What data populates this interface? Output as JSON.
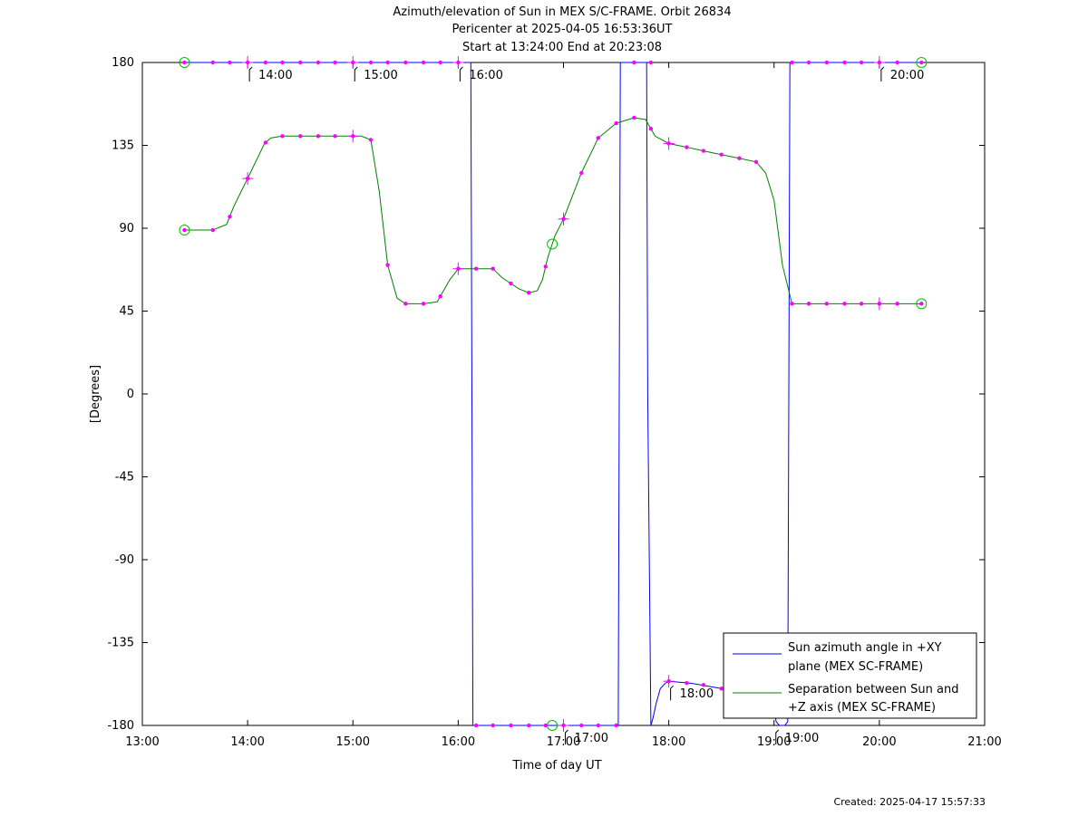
{
  "chart_data": {
    "type": "line",
    "title_lines": [
      "Azimuth/elevation of Sun in MEX S/C-FRAME.  Orbit 26834",
      "Pericenter at 2025-04-05 16:53:36UT",
      "Start at 13:24:00 End at 20:23:08"
    ],
    "xlabel": "Time of day UT",
    "ylabel": "[Degrees]",
    "xlim": [
      13.0,
      21.0
    ],
    "ylim": [
      -180,
      180
    ],
    "x_ticks": [
      13,
      14,
      15,
      16,
      17,
      18,
      19,
      20,
      21
    ],
    "x_tick_labels": [
      "13:00",
      "14:00",
      "15:00",
      "16:00",
      "17:00",
      "18:00",
      "19:00",
      "20:00",
      "21:00"
    ],
    "y_ticks": [
      180,
      135,
      90,
      45,
      0,
      -45,
      -90,
      -135,
      -180
    ],
    "y_tick_labels": [
      "180",
      "135",
      "90",
      "45",
      "0",
      "-45",
      "-90",
      "-135",
      "-180"
    ],
    "grid": false,
    "legend_position": "bottom-right",
    "series": [
      {
        "name": "Sun azimuth angle in +XY plane (MEX SC-FRAME)",
        "color": "#0000ff",
        "x": [
          13.4,
          13.9,
          14.0,
          15.0,
          16.0,
          16.12,
          16.13,
          16.14,
          16.5,
          17.0,
          17.5,
          17.52,
          17.53,
          17.54,
          17.78,
          17.79,
          17.8,
          17.83,
          17.85,
          17.88,
          17.92,
          17.97,
          18.0,
          18.2,
          18.5,
          18.9,
          19.0,
          19.02,
          19.05,
          19.1,
          19.13,
          19.14,
          19.15,
          19.5,
          20.0,
          20.4
        ],
        "y": [
          180,
          180,
          180,
          180,
          180,
          180,
          0,
          -180,
          -180,
          -180,
          -180,
          -180,
          0,
          180,
          180,
          180,
          0,
          -180,
          -176,
          -168,
          -160,
          -157,
          -156,
          -157,
          -160,
          -165,
          -172,
          -178,
          -180,
          -180,
          -178,
          0,
          180,
          180,
          180,
          180
        ]
      },
      {
        "name": "Separation between Sun and +Z axis (MEX SC-FRAME)",
        "color": "#008000",
        "x": [
          13.4,
          13.67,
          13.8,
          13.87,
          14.0,
          14.16,
          14.22,
          14.33,
          14.5,
          14.67,
          14.83,
          15.0,
          15.08,
          15.17,
          15.25,
          15.33,
          15.42,
          15.5,
          15.67,
          15.8,
          15.92,
          16.0,
          16.33,
          16.42,
          16.5,
          16.58,
          16.67,
          16.75,
          16.8,
          16.85,
          16.92,
          17.0,
          17.17,
          17.33,
          17.5,
          17.67,
          17.78,
          17.87,
          18.0,
          18.17,
          18.33,
          18.5,
          18.67,
          18.83,
          18.92,
          19.0,
          19.08,
          19.17,
          19.33,
          19.5,
          19.67,
          19.83,
          20.0,
          20.17,
          20.4
        ],
        "y": [
          89,
          89,
          92,
          102,
          117,
          136,
          139,
          140,
          140,
          140,
          140,
          140,
          140,
          138,
          110,
          70,
          52,
          49,
          49,
          50,
          62,
          68,
          68,
          63,
          60,
          57,
          55,
          56,
          62,
          74,
          86,
          95,
          120,
          139,
          147,
          150,
          149,
          140,
          136,
          134,
          132,
          130,
          128,
          126,
          120,
          105,
          70,
          49,
          49,
          49,
          49,
          49,
          49,
          49,
          49
        ]
      }
    ],
    "markers": {
      "azimuth_points_x": [
        13.4,
        13.67,
        13.83,
        14.0,
        14.17,
        14.33,
        14.5,
        14.67,
        14.83,
        15.0,
        15.17,
        15.33,
        15.5,
        15.67,
        15.83,
        16.0,
        16.17,
        16.33,
        16.5,
        16.67,
        16.83,
        17.0,
        17.17,
        17.33,
        17.5,
        17.67,
        17.83,
        18.0,
        18.17,
        18.33,
        18.5,
        18.67,
        18.83,
        19.17,
        19.33,
        19.5,
        19.67,
        19.83,
        20.0,
        20.17,
        20.4
      ],
      "azimuth_points_y": [
        180,
        180,
        180,
        180,
        180,
        180,
        180,
        180,
        180,
        180,
        180,
        180,
        180,
        180,
        180,
        180,
        -180,
        -180,
        -180,
        -180,
        -180,
        -180,
        -180,
        -180,
        -180,
        180,
        180,
        -156,
        -157,
        -158,
        -160,
        -162,
        -164,
        180,
        180,
        180,
        180,
        180,
        180,
        180,
        180
      ],
      "start_x": 13.4,
      "end_x": 20.4,
      "pericenter_x": 16.893
    },
    "hour_markers": [
      {
        "x": 14.0,
        "series": "azimuth",
        "label": "14:00"
      },
      {
        "x": 15.0,
        "series": "azimuth",
        "label": "15:00"
      },
      {
        "x": 16.0,
        "series": "azimuth",
        "label": "16:00"
      },
      {
        "x": 17.0,
        "series": "azimuth",
        "label": "17:00"
      },
      {
        "x": 18.0,
        "series": "azimuth",
        "label": "18:00"
      },
      {
        "x": 19.0,
        "series": "azimuth",
        "label": "19:00"
      },
      {
        "x": 20.0,
        "series": "azimuth",
        "label": "20:00"
      }
    ],
    "legend": [
      {
        "line1": "Sun azimuth angle in +XY",
        "line2": "plane (MEX SC-FRAME)",
        "color": "#0000ff"
      },
      {
        "line1": "Separation between Sun and",
        "line2": "+Z axis (MEX SC-FRAME)",
        "color": "#008000"
      }
    ]
  },
  "created": "Created: 2025-04-17 15:57:33",
  "colors": {
    "marker": "#ff00ff",
    "circle": "#00c000"
  }
}
